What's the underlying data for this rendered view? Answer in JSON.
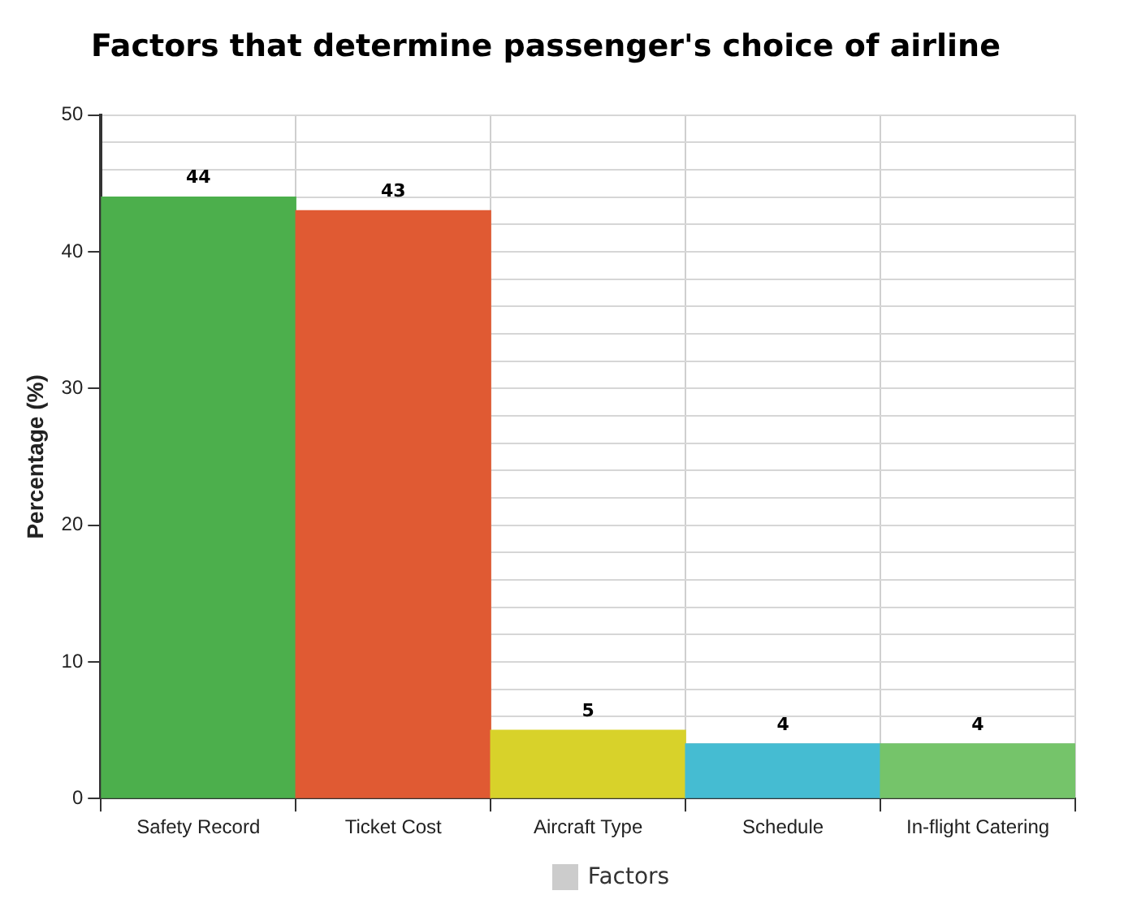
{
  "chart_data": {
    "type": "bar",
    "title": "Factors that determine passenger's choice of airline",
    "ylabel": "Percentage (%)",
    "categories": [
      "Safety Record",
      "Ticket Cost",
      "Aircraft Type",
      "Schedule",
      "In-flight Catering"
    ],
    "series": [
      {
        "name": "Factors",
        "color": "#cccccc",
        "colors": [
          "#4caf4c",
          "#e05a33",
          "#d8d22a",
          "#45bcd2",
          "#75c46a"
        ],
        "values": [
          44,
          43,
          5,
          4,
          4
        ]
      }
    ],
    "ylim": [
      0,
      50
    ],
    "yticks": [
      0,
      {
        "value": 4,
        "label": null
      },
      {
        "value": 6,
        "label": null
      },
      {
        "value": 8,
        "label": null
      },
      10,
      {
        "value": 12,
        "label": null
      },
      {
        "value": 14,
        "label": null
      },
      {
        "value": 16,
        "label": null
      },
      {
        "value": 18,
        "label": null
      },
      20,
      {
        "value": 22,
        "label": null
      },
      {
        "value": 24,
        "label": null
      },
      {
        "value": 26,
        "label": null
      },
      {
        "value": 28,
        "label": null
      },
      30,
      {
        "value": 32,
        "label": null
      },
      {
        "value": 34,
        "label": null
      },
      {
        "value": 36,
        "label": null
      },
      {
        "value": 38,
        "label": null
      },
      40,
      {
        "value": 42,
        "label": null
      },
      {
        "value": 44,
        "label": null
      },
      {
        "value": 46,
        "label": null
      },
      {
        "value": 48,
        "label": null
      },
      50
    ],
    "grid": true,
    "legend": "bottom",
    "data_labels": true
  }
}
